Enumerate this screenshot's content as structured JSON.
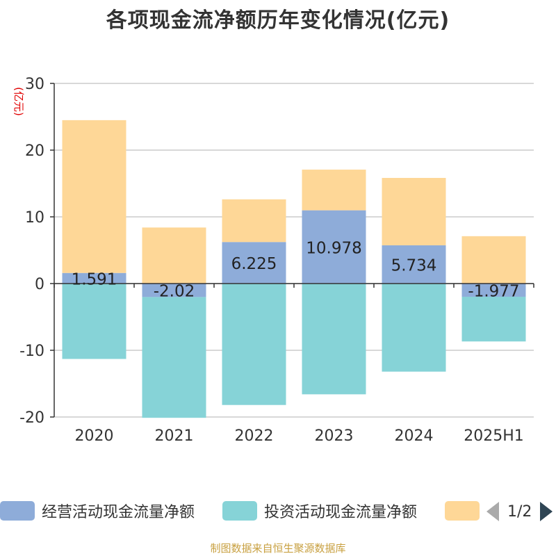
{
  "title": "各项现金流净额历年变化情况(亿元)",
  "source_note": "制图数据来自恒生聚源数据库",
  "legend": {
    "items": [
      {
        "label": "经营活动现金流量净额",
        "color": "#8eacd9"
      },
      {
        "label": "投资活动现金流量净额",
        "color": "#86d3d7"
      },
      {
        "label": "",
        "color": "#fed797"
      }
    ],
    "page_indicator": "1/2"
  },
  "chart_data": {
    "type": "bar",
    "stacked": true,
    "categories": [
      "2020",
      "2021",
      "2022",
      "2023",
      "2024",
      "2025H1"
    ],
    "series": [
      {
        "name": "经营活动现金流量净额",
        "color": "#8eacd9",
        "values": [
          1.591,
          -2.02,
          6.225,
          10.978,
          5.734,
          -1.977
        ],
        "labels": [
          "1.591",
          "-2.02",
          "6.225",
          "10.978",
          "5.734",
          "-1.977"
        ]
      },
      {
        "name": "投资活动现金流量净额",
        "color": "#86d3d7",
        "values": [
          -11.3,
          -18.1,
          -18.2,
          -16.6,
          -13.2,
          -6.7
        ]
      },
      {
        "name": "",
        "color": "#fed797",
        "values": [
          22.9,
          8.4,
          6.4,
          6.1,
          10.1,
          7.1
        ]
      }
    ],
    "ylabel": "(亿元)",
    "ylim": [
      -20,
      30
    ],
    "yticks": [
      -20,
      -10,
      0,
      10,
      20,
      30
    ],
    "grid": true,
    "legend_position": "bottom"
  }
}
